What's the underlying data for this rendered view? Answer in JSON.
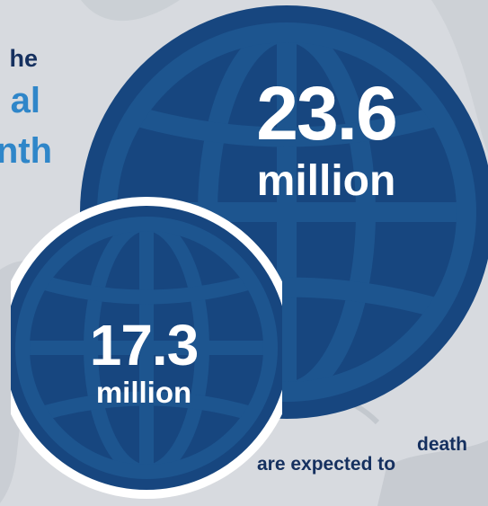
{
  "headline": {
    "line1": "he",
    "line2": "al",
    "line3": "nth"
  },
  "stats": {
    "projected": {
      "value": "23.6",
      "unit": "million"
    },
    "current": {
      "value": "17.3",
      "unit": "million"
    }
  },
  "caption": {
    "line1": "death",
    "line2": "are expected to"
  },
  "colors": {
    "background": "#d7dadf",
    "globe_fill": "#17467f",
    "globe_lines": "#1d558f",
    "headline_dark": "#15305f",
    "headline_accent": "#2f86c9",
    "stat_text": "#ffffff"
  }
}
